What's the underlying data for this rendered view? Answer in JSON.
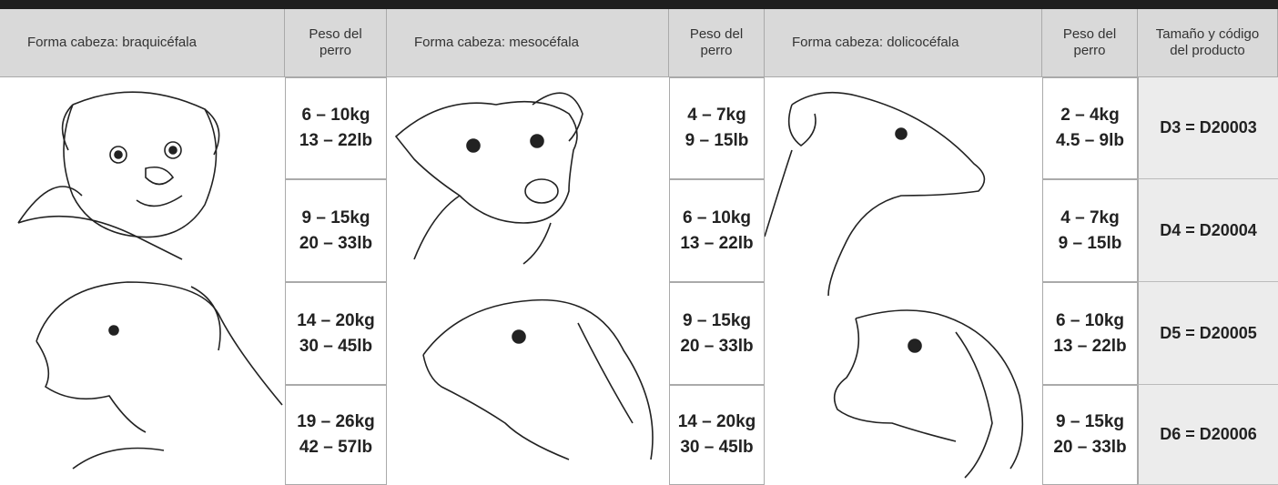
{
  "header": {
    "columns": [
      "Forma cabeza: braquicéfala",
      "Peso del perro",
      "Forma cabeza: mesocéfala",
      "Peso del perro",
      "Forma cabeza: dolicocéfala",
      "Peso del perro",
      "Tamaño y código del producto"
    ]
  },
  "rows": [
    {
      "weights": [
        [
          "6 – 10kg",
          "13 – 22lb"
        ],
        [
          "4 – 7kg",
          "9 – 15lb"
        ],
        [
          "2 – 4kg",
          "4.5 – 9lb"
        ]
      ],
      "code": "D3 = D20003"
    },
    {
      "weights": [
        [
          "9 – 15kg",
          "20 – 33lb"
        ],
        [
          "6 – 10kg",
          "13 – 22lb"
        ],
        [
          "4 – 7kg",
          "9 – 15lb"
        ]
      ],
      "code": "D4 = D20004"
    },
    {
      "weights": [
        [
          "14 – 20kg",
          "30 – 45lb"
        ],
        [
          "9 – 15kg",
          "20 – 33lb"
        ],
        [
          "6 – 10kg",
          "13 – 22lb"
        ]
      ],
      "code": "D5 = D20005"
    },
    {
      "weights": [
        [
          "19 – 26kg",
          "42 – 57lb"
        ],
        [
          "14 – 20kg",
          "30 – 45lb"
        ],
        [
          "9 – 15kg",
          "20 – 33lb"
        ]
      ],
      "code": "D6 = D20006"
    }
  ]
}
